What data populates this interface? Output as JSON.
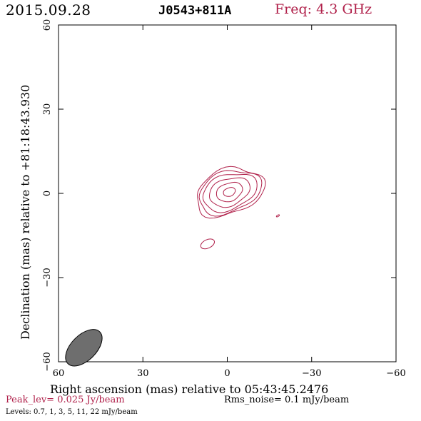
{
  "header": {
    "date": "2015.09.28",
    "source": "J0543+811A",
    "frequency": "Freq: 4.3 GHz"
  },
  "chart_data": {
    "type": "contour",
    "title": "J0543+811A",
    "xlabel": "Right ascension (mas) relative to 05:43:45.2476",
    "ylabel": "Declination (mas) relative to +81:18:43.930",
    "xlim": [
      60,
      -60
    ],
    "ylim": [
      -60,
      60
    ],
    "x_ticks": [
      60,
      30,
      0,
      -30,
      -60
    ],
    "y_ticks": [
      60,
      30,
      0,
      -30,
      -60
    ],
    "x_tick_labels": [
      "60",
      "30",
      "0",
      "−30",
      "−60"
    ],
    "y_tick_labels": [
      "60",
      "30",
      "0",
      "−30",
      "−60"
    ],
    "contour_levels_mJy_per_beam": [
      0.7,
      1,
      3,
      5,
      11,
      22
    ],
    "peak_level_Jy_per_beam": 0.025,
    "rms_noise_mJy_per_beam": 0.1,
    "contour_color": "#b0204a",
    "components": [
      {
        "name": "core",
        "center": [
          0,
          0
        ],
        "levels": [
          0.7,
          1,
          3,
          5,
          11,
          22
        ]
      },
      {
        "name": "blob-south",
        "center": [
          7,
          -18
        ],
        "levels": [
          0.7
        ]
      },
      {
        "name": "blob-west",
        "center": [
          -18,
          -8
        ],
        "levels": [
          0.7
        ]
      }
    ],
    "beam": {
      "center": [
        51,
        -55
      ],
      "major_mas": 8,
      "minor_mas": 4.5,
      "pa_deg": 70
    }
  },
  "footer": {
    "peak": "Peak_lev=  0.025 Jy/beam",
    "rms": "Rms_noise=   0.1 mJy/beam",
    "levels": "Levels: 0.7,    1,    3,    5,   11,   22 mJy/beam"
  }
}
